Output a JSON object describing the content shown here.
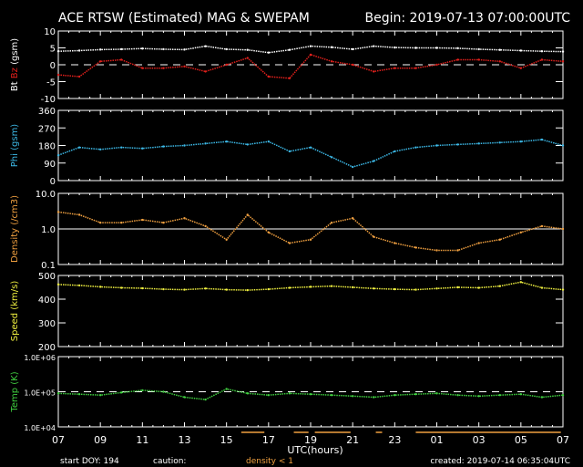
{
  "title": "ACE RTSW (Estimated) MAG & SWEPAM",
  "begin": "Begin: 2019-07-13 07:00:00UTC",
  "footer": {
    "start_doy": "start DOY: 194",
    "caution_label": "caution:",
    "caution_density": "density < 1",
    "created": "created: 2019-07-14 06:35:04UTC"
  },
  "colors": {
    "bt": "#ffffff",
    "bz": "#e0201c",
    "phi": "#3cb8e6",
    "density": "#f0a040",
    "speed": "#f0f040",
    "temp": "#40d040",
    "axis": "#ffffff"
  },
  "chart_data": {
    "type": "scatter",
    "xlabel": "UTC(hours)",
    "xlim": [
      0,
      24
    ],
    "x_tick_labels": [
      "07",
      "09",
      "11",
      "13",
      "15",
      "17",
      "19",
      "21",
      "23",
      "01",
      "03",
      "05",
      "07"
    ],
    "x": [
      0,
      1,
      2,
      3,
      4,
      5,
      6,
      7,
      8,
      9,
      10,
      11,
      12,
      13,
      14,
      15,
      16,
      17,
      18,
      19,
      20,
      21,
      22,
      23,
      24
    ],
    "caution_intervals_hours": [
      [
        8.7,
        9.8
      ],
      [
        11.2,
        11.9
      ],
      [
        12.2,
        13.9
      ],
      [
        15.1,
        15.4
      ],
      [
        17.0,
        23.9
      ]
    ],
    "panels": [
      {
        "id": "mag",
        "ylabel_parts": [
          "Bt",
          "Bz",
          "(gsm)"
        ],
        "ylim": [
          -10,
          10
        ],
        "scale": "linear",
        "yticks": [
          10,
          5,
          0,
          -5,
          -10
        ],
        "ytick_labels": [
          "10",
          "5",
          "0",
          "-5",
          "-10"
        ],
        "refline": 0,
        "refstyle": "dashed",
        "series": [
          {
            "name": "Bt",
            "color": "bt",
            "values": [
              4,
              4.2,
              4.5,
              4.6,
              4.8,
              4.6,
              4.5,
              5.5,
              4.6,
              4.4,
              3.6,
              4.4,
              5.5,
              5.2,
              4.6,
              5.5,
              5.1,
              5,
              5,
              4.9,
              4.6,
              4.4,
              4.2,
              4,
              3.9
            ]
          },
          {
            "name": "Bz",
            "color": "bz",
            "values": [
              -3,
              -3.5,
              1,
              1.5,
              -1,
              -1,
              -0.5,
              -2,
              0,
              2,
              -3.5,
              -4,
              3,
              1,
              0,
              -2,
              -1,
              -1,
              0,
              1.5,
              1.5,
              1,
              -1,
              1.5,
              1
            ]
          }
        ]
      },
      {
        "id": "phi",
        "ylabel_parts": [
          "Phi (gsm)"
        ],
        "ylim": [
          0,
          360
        ],
        "scale": "linear",
        "yticks": [
          360,
          270,
          180,
          90,
          0
        ],
        "ytick_labels": [
          "360",
          "270",
          "180",
          "90",
          "0"
        ],
        "series": [
          {
            "name": "Phi",
            "color": "phi",
            "values": [
              130,
              170,
              160,
              170,
              165,
              175,
              180,
              190,
              200,
              185,
              200,
              150,
              170,
              120,
              70,
              100,
              150,
              170,
              180,
              185,
              190,
              195,
              200,
              210,
              180
            ]
          }
        ]
      },
      {
        "id": "density",
        "ylabel_parts": [
          "Density (/cm3)"
        ],
        "ylim": [
          0.1,
          10
        ],
        "scale": "log",
        "yticks": [
          10,
          1,
          0.1
        ],
        "ytick_labels": [
          "10.0",
          "1.0",
          "0.1"
        ],
        "refline": 1,
        "refstyle": "solid",
        "series": [
          {
            "name": "Density",
            "color": "density",
            "values": [
              3,
              2.5,
              1.5,
              1.5,
              1.8,
              1.5,
              2,
              1.2,
              0.5,
              2.5,
              0.8,
              0.4,
              0.5,
              1.5,
              2,
              0.6,
              0.4,
              0.3,
              0.25,
              0.25,
              0.4,
              0.5,
              0.8,
              1.2,
              1
            ]
          }
        ]
      },
      {
        "id": "speed",
        "ylabel_parts": [
          "Speed (km/s)"
        ],
        "ylim": [
          200,
          500
        ],
        "scale": "linear",
        "yticks": [
          500,
          400,
          300,
          200
        ],
        "ytick_labels": [
          "500",
          "400",
          "300",
          "200"
        ],
        "series": [
          {
            "name": "Speed",
            "color": "speed",
            "values": [
              462,
              458,
              452,
              448,
              446,
              442,
              440,
              445,
              440,
              438,
              442,
              448,
              452,
              455,
              450,
              445,
              442,
              440,
              445,
              450,
              448,
              455,
              472,
              448,
              440
            ]
          }
        ]
      },
      {
        "id": "temp",
        "ylabel_parts": [
          "Temp (K)"
        ],
        "ylim": [
          10000,
          1000000
        ],
        "scale": "log",
        "yticks": [
          1000000,
          100000,
          10000
        ],
        "ytick_labels": [
          "1.0E+06",
          "1.0E+05",
          "1.0E+04"
        ],
        "refline": 100000,
        "refstyle": "dashed",
        "series": [
          {
            "name": "Temp",
            "color": "temp",
            "values": [
              90000,
              85000,
              80000,
              95000,
              110000,
              100000,
              70000,
              60000,
              120000,
              90000,
              80000,
              90000,
              85000,
              80000,
              75000,
              70000,
              80000,
              85000,
              90000,
              80000,
              75000,
              80000,
              85000,
              70000,
              80000
            ]
          }
        ]
      }
    ]
  }
}
